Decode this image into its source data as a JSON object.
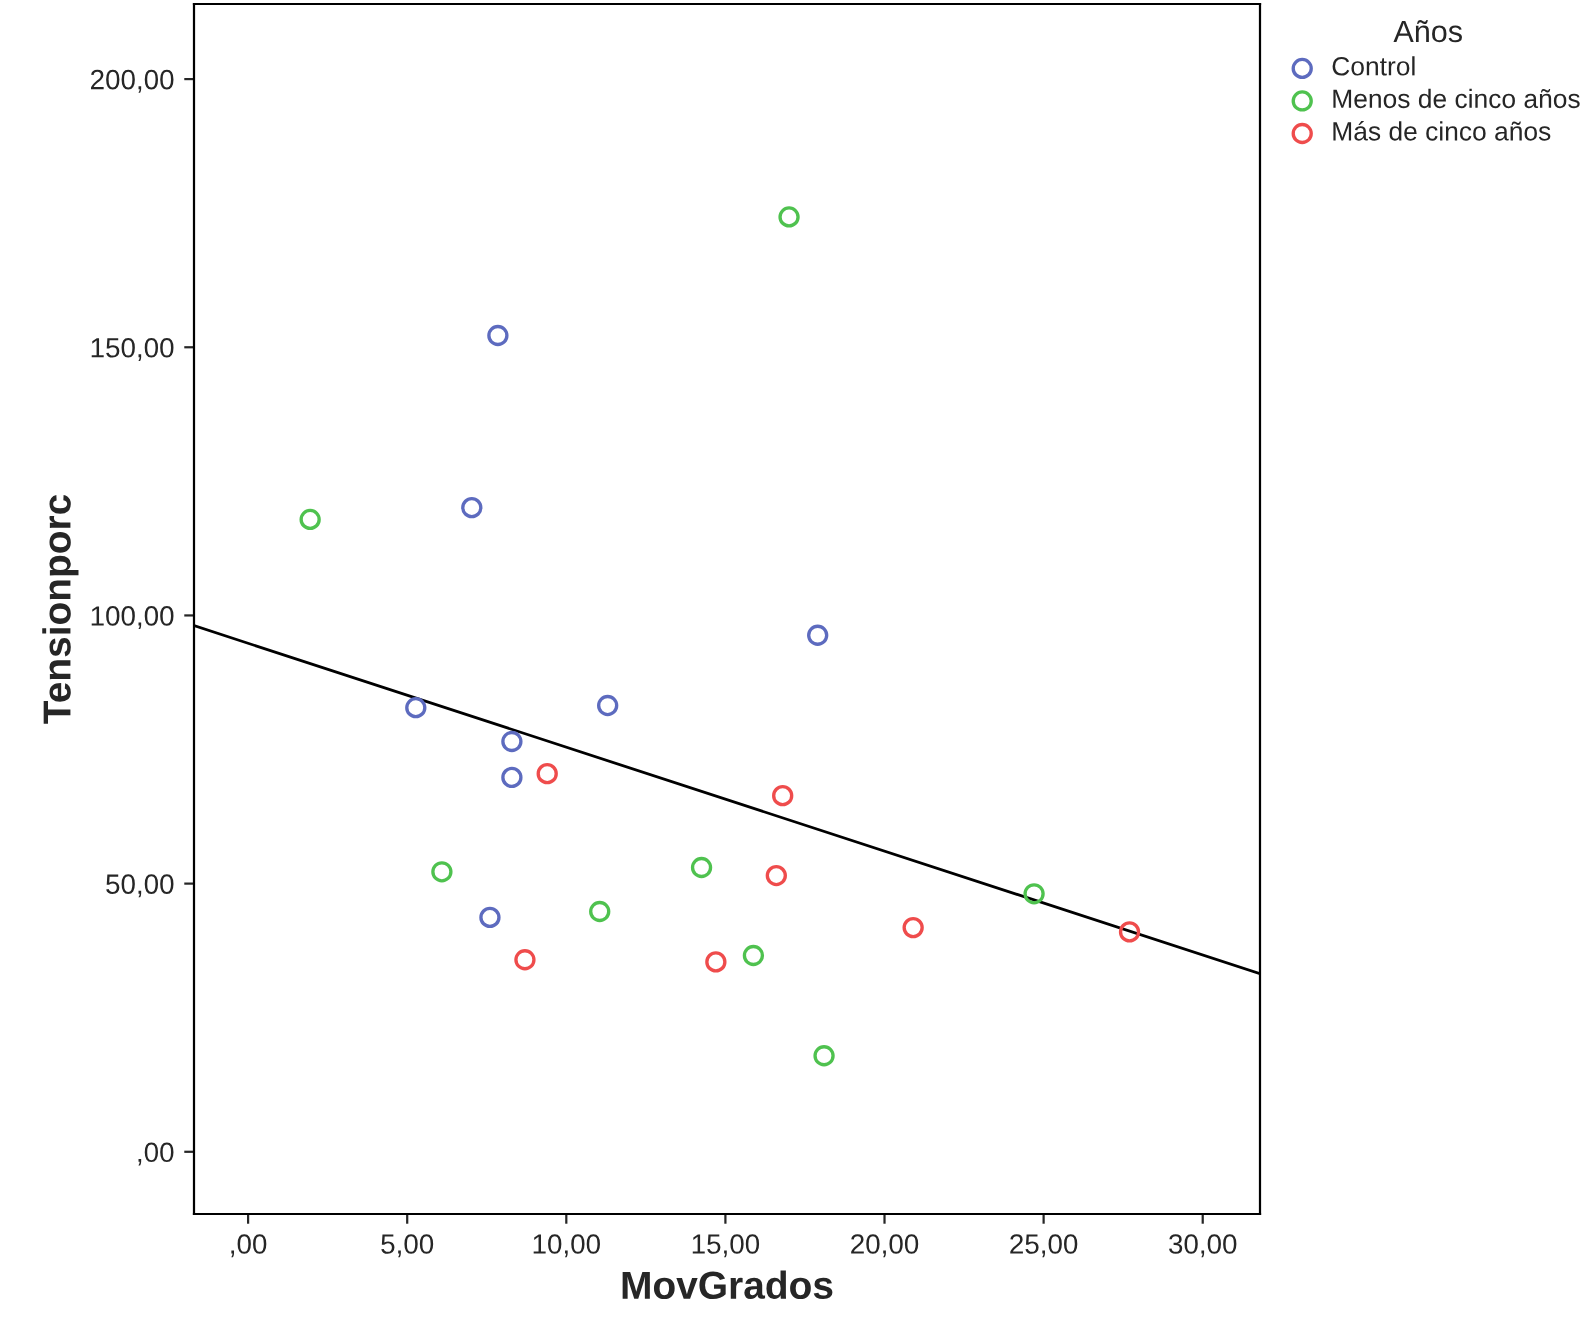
{
  "chart_data": {
    "type": "scatter",
    "xlabel": "MovGrados",
    "ylabel": "Tensionporc",
    "legend_title": "Años",
    "legend": "top right",
    "grid": false,
    "marker": "circle",
    "xlim": [
      -1.7,
      31.8
    ],
    "ylim": [
      -11.6,
      214
    ],
    "xticks": [
      {
        "value": 0,
        "label": ",00"
      },
      {
        "value": 5,
        "label": "5,00"
      },
      {
        "value": 10,
        "label": "10,00"
      },
      {
        "value": 15,
        "label": "15,00"
      },
      {
        "value": 20,
        "label": "20,00"
      },
      {
        "value": 25,
        "label": "25,00"
      },
      {
        "value": 30,
        "label": "30,00"
      }
    ],
    "yticks": [
      {
        "value": 0,
        "label": ",00"
      },
      {
        "value": 50,
        "label": "50,00"
      },
      {
        "value": 100,
        "label": "100,00"
      },
      {
        "value": 150,
        "label": "150,00"
      },
      {
        "value": 200,
        "label": "200,00"
      }
    ],
    "series": [
      {
        "name": "Control",
        "color": "#5d6bbf",
        "x": [
          7.85,
          7.03,
          17.9,
          5.27,
          11.3,
          8.29,
          8.29,
          7.6
        ],
        "values": [
          152.2,
          120.1,
          96.3,
          82.8,
          83.2,
          76.5,
          69.8,
          43.7
        ]
      },
      {
        "name": "Menos de cinco años",
        "color": "#4fc24f",
        "x": [
          17.0,
          1.95,
          6.09,
          14.25,
          11.05,
          15.88,
          18.1,
          24.7
        ],
        "values": [
          174.3,
          117.9,
          52.2,
          53.0,
          44.8,
          36.6,
          17.9,
          48.1
        ]
      },
      {
        "name": "Más de cinco años",
        "color": "#ef4c4c",
        "x": [
          9.4,
          16.8,
          16.6,
          20.9,
          27.7,
          8.7,
          14.7
        ],
        "values": [
          70.5,
          66.4,
          51.5,
          41.8,
          41.0,
          35.8,
          35.4
        ]
      },
      {
        "type": "line",
        "color": "#000000",
        "marker": "none",
        "x": [
          -1.7,
          31.8
        ],
        "values": [
          98.1,
          33.2
        ]
      }
    ]
  }
}
